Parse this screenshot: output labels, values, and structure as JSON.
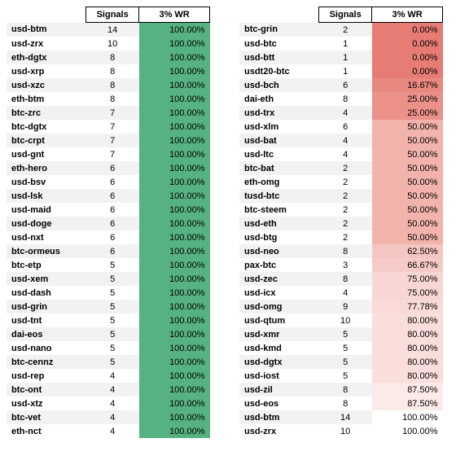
{
  "headers": {
    "signals": "Signals",
    "wr": "3% WR"
  },
  "colors": {
    "green_full": "#56b281",
    "red_0": "#e67c73",
    "red_17": "#e9887f",
    "red_25": "#eb9189",
    "red_50": "#f2b3ad",
    "red_62": "#f5c6c1",
    "red_67": "#f6cbc7",
    "red_75": "#f8d6d3",
    "red_78": "#f9dad7",
    "red_80": "#fadedb",
    "red_87": "#fceae8",
    "red_100": "#ffffff"
  },
  "left": [
    {
      "pair": "usd-btm",
      "signals": 14,
      "wr": "100.00%",
      "c": "green_full"
    },
    {
      "pair": "usd-zrx",
      "signals": 10,
      "wr": "100.00%",
      "c": "green_full"
    },
    {
      "pair": "eth-dgtx",
      "signals": 8,
      "wr": "100.00%",
      "c": "green_full"
    },
    {
      "pair": "usd-xrp",
      "signals": 8,
      "wr": "100.00%",
      "c": "green_full"
    },
    {
      "pair": "usd-xzc",
      "signals": 8,
      "wr": "100.00%",
      "c": "green_full"
    },
    {
      "pair": "eth-btm",
      "signals": 8,
      "wr": "100.00%",
      "c": "green_full"
    },
    {
      "pair": "btc-zrc",
      "signals": 7,
      "wr": "100.00%",
      "c": "green_full"
    },
    {
      "pair": "btc-dgtx",
      "signals": 7,
      "wr": "100.00%",
      "c": "green_full"
    },
    {
      "pair": "btc-crpt",
      "signals": 7,
      "wr": "100.00%",
      "c": "green_full"
    },
    {
      "pair": "usd-gnt",
      "signals": 7,
      "wr": "100.00%",
      "c": "green_full"
    },
    {
      "pair": "eth-hero",
      "signals": 6,
      "wr": "100.00%",
      "c": "green_full"
    },
    {
      "pair": "usd-bsv",
      "signals": 6,
      "wr": "100.00%",
      "c": "green_full"
    },
    {
      "pair": "usd-lsk",
      "signals": 6,
      "wr": "100.00%",
      "c": "green_full"
    },
    {
      "pair": "usd-maid",
      "signals": 6,
      "wr": "100.00%",
      "c": "green_full"
    },
    {
      "pair": "usd-doge",
      "signals": 6,
      "wr": "100.00%",
      "c": "green_full"
    },
    {
      "pair": "usd-nxt",
      "signals": 6,
      "wr": "100.00%",
      "c": "green_full"
    },
    {
      "pair": "btc-ormeus",
      "signals": 6,
      "wr": "100.00%",
      "c": "green_full"
    },
    {
      "pair": "btc-etp",
      "signals": 5,
      "wr": "100.00%",
      "c": "green_full"
    },
    {
      "pair": "usd-xem",
      "signals": 5,
      "wr": "100.00%",
      "c": "green_full"
    },
    {
      "pair": "usd-dash",
      "signals": 5,
      "wr": "100.00%",
      "c": "green_full"
    },
    {
      "pair": "usd-grin",
      "signals": 5,
      "wr": "100.00%",
      "c": "green_full"
    },
    {
      "pair": "usd-tnt",
      "signals": 5,
      "wr": "100.00%",
      "c": "green_full"
    },
    {
      "pair": "dai-eos",
      "signals": 5,
      "wr": "100.00%",
      "c": "green_full"
    },
    {
      "pair": "usd-nano",
      "signals": 5,
      "wr": "100.00%",
      "c": "green_full"
    },
    {
      "pair": "btc-cennz",
      "signals": 5,
      "wr": "100.00%",
      "c": "green_full"
    },
    {
      "pair": "usd-rep",
      "signals": 4,
      "wr": "100.00%",
      "c": "green_full"
    },
    {
      "pair": "btc-ont",
      "signals": 4,
      "wr": "100.00%",
      "c": "green_full"
    },
    {
      "pair": "usd-xtz",
      "signals": 4,
      "wr": "100.00%",
      "c": "green_full"
    },
    {
      "pair": "btc-vet",
      "signals": 4,
      "wr": "100.00%",
      "c": "green_full"
    },
    {
      "pair": "eth-nct",
      "signals": 4,
      "wr": "100.00%",
      "c": "green_full"
    }
  ],
  "right": [
    {
      "pair": "btc-grin",
      "signals": 2,
      "wr": "0.00%",
      "c": "red_0"
    },
    {
      "pair": "usd-btc",
      "signals": 1,
      "wr": "0.00%",
      "c": "red_0"
    },
    {
      "pair": "usd-btt",
      "signals": 1,
      "wr": "0.00%",
      "c": "red_0"
    },
    {
      "pair": "usdt20-btc",
      "signals": 1,
      "wr": "0.00%",
      "c": "red_0"
    },
    {
      "pair": "usd-bch",
      "signals": 6,
      "wr": "16.67%",
      "c": "red_17"
    },
    {
      "pair": "dai-eth",
      "signals": 8,
      "wr": "25.00%",
      "c": "red_25"
    },
    {
      "pair": "usd-trx",
      "signals": 4,
      "wr": "25.00%",
      "c": "red_25"
    },
    {
      "pair": "usd-xlm",
      "signals": 6,
      "wr": "50.00%",
      "c": "red_50"
    },
    {
      "pair": "usd-bat",
      "signals": 4,
      "wr": "50.00%",
      "c": "red_50"
    },
    {
      "pair": "usd-ltc",
      "signals": 4,
      "wr": "50.00%",
      "c": "red_50"
    },
    {
      "pair": "btc-bat",
      "signals": 2,
      "wr": "50.00%",
      "c": "red_50"
    },
    {
      "pair": "eth-omg",
      "signals": 2,
      "wr": "50.00%",
      "c": "red_50"
    },
    {
      "pair": "tusd-btc",
      "signals": 2,
      "wr": "50.00%",
      "c": "red_50"
    },
    {
      "pair": "btc-steem",
      "signals": 2,
      "wr": "50.00%",
      "c": "red_50"
    },
    {
      "pair": "usd-eth",
      "signals": 2,
      "wr": "50.00%",
      "c": "red_50"
    },
    {
      "pair": "usd-btg",
      "signals": 2,
      "wr": "50.00%",
      "c": "red_50"
    },
    {
      "pair": "usd-neo",
      "signals": 8,
      "wr": "62.50%",
      "c": "red_62"
    },
    {
      "pair": "pax-btc",
      "signals": 3,
      "wr": "66.67%",
      "c": "red_67"
    },
    {
      "pair": "usd-zec",
      "signals": 8,
      "wr": "75.00%",
      "c": "red_75"
    },
    {
      "pair": "usd-icx",
      "signals": 4,
      "wr": "75.00%",
      "c": "red_75"
    },
    {
      "pair": "usd-omg",
      "signals": 9,
      "wr": "77.78%",
      "c": "red_78"
    },
    {
      "pair": "usd-qtum",
      "signals": 10,
      "wr": "80.00%",
      "c": "red_80"
    },
    {
      "pair": "usd-xmr",
      "signals": 5,
      "wr": "80.00%",
      "c": "red_80"
    },
    {
      "pair": "usd-kmd",
      "signals": 5,
      "wr": "80.00%",
      "c": "red_80"
    },
    {
      "pair": "usd-dgtx",
      "signals": 5,
      "wr": "80.00%",
      "c": "red_80"
    },
    {
      "pair": "usd-iost",
      "signals": 5,
      "wr": "80.00%",
      "c": "red_80"
    },
    {
      "pair": "usd-zil",
      "signals": 8,
      "wr": "87.50%",
      "c": "red_87"
    },
    {
      "pair": "usd-eos",
      "signals": 8,
      "wr": "87.50%",
      "c": "red_87"
    },
    {
      "pair": "usd-btm",
      "signals": 14,
      "wr": "100.00%",
      "c": "red_100"
    },
    {
      "pair": "usd-zrx",
      "signals": 10,
      "wr": "100.00%",
      "c": "red_100"
    }
  ]
}
